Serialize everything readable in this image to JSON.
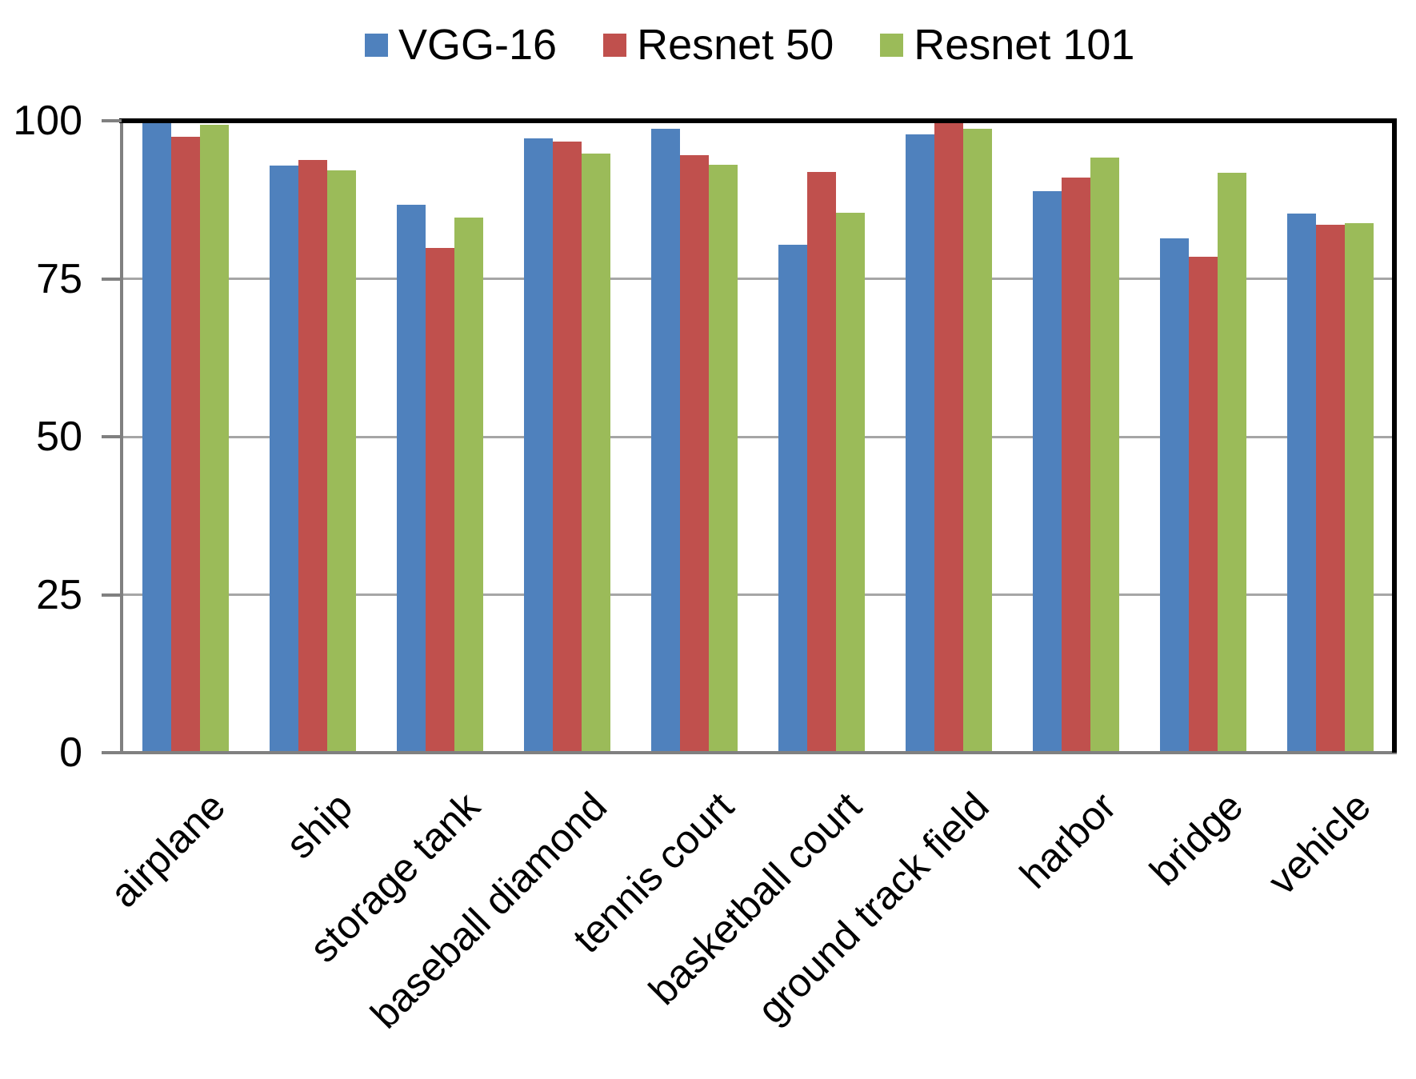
{
  "chart_data": {
    "type": "bar",
    "title": "",
    "xlabel": "",
    "ylabel": "",
    "categories": [
      "airplane",
      "ship",
      "storage tank",
      "baseball diamond",
      "tennis court",
      "basketball court",
      "ground track field",
      "harbor",
      "bridge",
      "vehicle"
    ],
    "series": [
      {
        "name": "VGG-16",
        "color": "#4F81BD",
        "values": [
          99.7,
          92.6,
          86.5,
          96.9,
          98.5,
          80.1,
          97.6,
          88.6,
          81.2,
          85.1
        ]
      },
      {
        "name": "Resnet 50",
        "color": "#C0504D",
        "values": [
          97.2,
          93.6,
          79.6,
          96.4,
          94.3,
          91.7,
          100.0,
          90.7,
          78.2,
          83.3
        ]
      },
      {
        "name": "Resnet 101",
        "color": "#9BBB59",
        "values": [
          99.1,
          91.9,
          84.4,
          94.6,
          92.8,
          85.2,
          98.5,
          93.9,
          91.5,
          83.6
        ]
      }
    ],
    "ylim": [
      0,
      100
    ],
    "yticks": [
      0,
      25,
      50,
      75,
      100
    ],
    "grid": true,
    "legend_position": "top",
    "colors": {
      "axis": "#808080",
      "gridline": "#A6A6A6",
      "plot_border": "#000000",
      "background": "#FFFFFF"
    }
  }
}
